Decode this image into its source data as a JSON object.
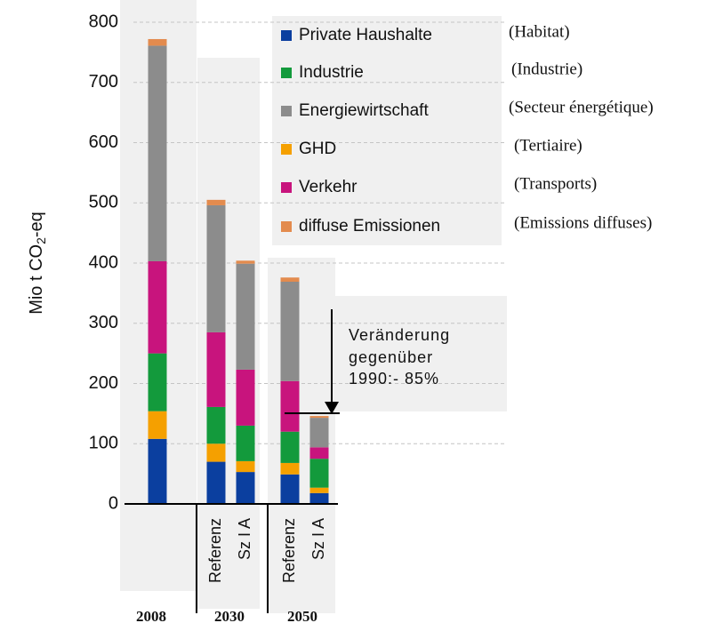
{
  "chart_data": {
    "type": "stacked_bar",
    "ylabel": [
      "Mio t CO",
      "2",
      "-eq"
    ],
    "categories": [
      null,
      "Referenz",
      "Sz I A",
      "Referenz",
      "Sz I A"
    ],
    "groups": [
      "2008",
      "2030",
      "2050"
    ],
    "ylim": [
      0,
      800
    ],
    "yticks": [
      0,
      100,
      200,
      300,
      400,
      500,
      600,
      700,
      800
    ],
    "grid": true,
    "series": [
      {
        "name": "Private Haushalte",
        "translation": "(Habitat)",
        "color": "#0b3f9f",
        "values": [
          108,
          70,
          53,
          49,
          18
        ]
      },
      {
        "name": "GHD",
        "translation": "(Tertiaire)",
        "color": "#f5a000",
        "values": [
          46,
          30,
          18,
          19,
          9
        ]
      },
      {
        "name": "Industrie",
        "translation": "(Industrie)",
        "color": "#139a3c",
        "values": [
          96,
          61,
          59,
          52,
          48
        ]
      },
      {
        "name": "Verkehr",
        "translation": "(Transports)",
        "color": "#c8147d",
        "values": [
          153,
          124,
          93,
          84,
          19
        ]
      },
      {
        "name": "Energiewirtschaft",
        "translation": "(Secteur énergétique)",
        "color": "#8c8c8c",
        "values": [
          358,
          211,
          176,
          165,
          49
        ]
      },
      {
        "name": "diffuse Emissionen",
        "translation": "(Emissions diffuses)",
        "color": "#e38b4e",
        "values": [
          11,
          9,
          5,
          7,
          3
        ]
      }
    ],
    "legend_order": [
      0,
      2,
      4,
      1,
      3,
      5
    ],
    "annotation": [
      "Veränderung",
      "gegenüber",
      "1990:- 85%"
    ]
  }
}
